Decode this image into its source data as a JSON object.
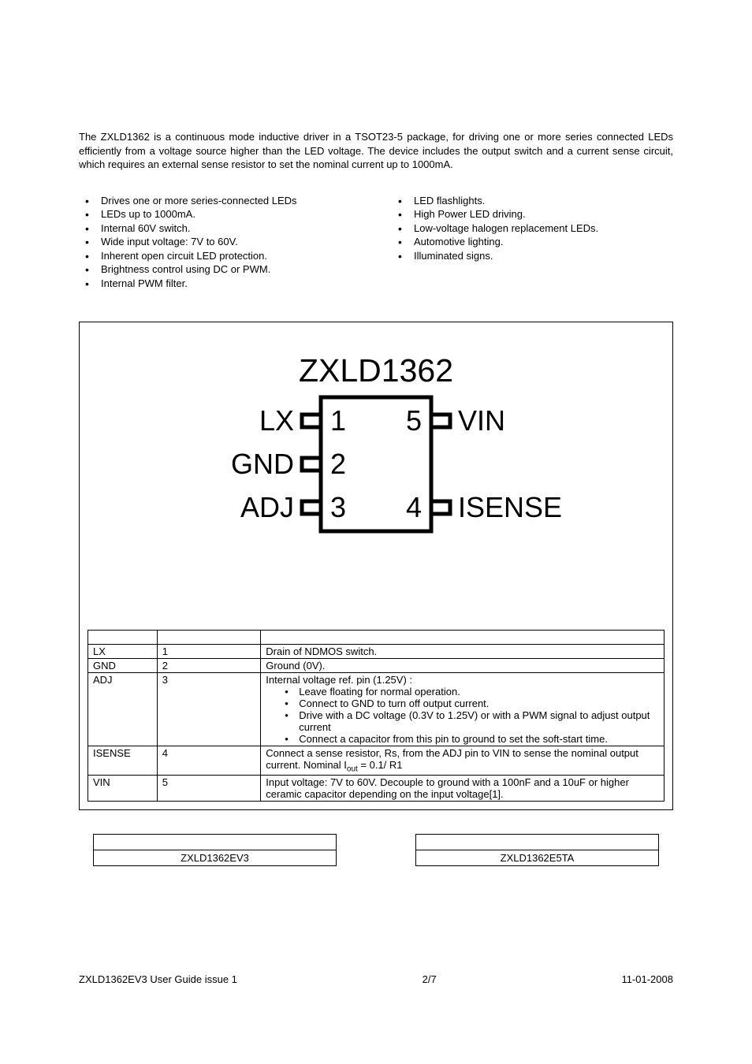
{
  "intro": "The ZXLD1362 is a continuous mode inductive driver in a TSOT23-5 package, for driving one or more series connected LEDs efficiently from a voltage source higher than the LED voltage.  The device includes the output switch and a current sense circuit, which requires an external sense resistor to set the nominal current up to 1000mA.",
  "features": [
    "Drives one or more series-connected  LEDs",
    "LEDs up to 1000mA.",
    "Internal 60V switch.",
    "Wide input voltage: 7V to 60V.",
    "Inherent open circuit LED protection.",
    "Brightness control using DC or PWM.",
    "Internal PWM filter."
  ],
  "applications": [
    "LED flashlights.",
    "High Power LED driving.",
    "Low-voltage halogen replacement LEDs.",
    "Automotive lighting.",
    "Illuminated signs."
  ],
  "diagram": {
    "title": "ZXLD1362",
    "pins_left": [
      {
        "n": "1",
        "label": "LX"
      },
      {
        "n": "2",
        "label": "GND"
      },
      {
        "n": "3",
        "label": "ADJ"
      }
    ],
    "pins_right": [
      {
        "n": "5",
        "label": "VIN"
      },
      {
        "n": "4",
        "label": "ISENSE"
      }
    ],
    "style": {
      "title_fontsize": 41,
      "label_fontsize": 36,
      "num_fontsize": 36,
      "stroke_width": 5,
      "font_family": "Arial",
      "color": "#000000",
      "pin_box_w": 24,
      "pin_box_h": 16
    }
  },
  "pin_table": {
    "columns": [
      "",
      "",
      ""
    ],
    "rows": [
      {
        "name": "LX",
        "num": "1",
        "desc_plain": "Drain of NDMOS switch."
      },
      {
        "name": "GND",
        "num": "2",
        "desc_plain": "Ground (0V)."
      },
      {
        "name": "ADJ",
        "num": "3",
        "desc_lead": "Internal voltage ref. pin (1.25V) :",
        "desc_bullets": [
          "Leave floating for normal operation.",
          "Connect to GND to turn off output current.",
          "Drive with a DC voltage (0.3V to 1.25V) or with a PWM signal to adjust output current",
          "Connect a capacitor from this pin to ground to set the soft-start time."
        ]
      },
      {
        "name": "ISENSE",
        "num": "4",
        "desc_html": "Connect a sense resistor, Rs, from the ADJ pin to VIN to sense the nominal output current. Nominal I<sub>out</sub> = 0.1/ R1"
      },
      {
        "name": "VIN",
        "num": "5",
        "desc_plain": "Input voltage: 7V to 60V. Decouple to ground with a 100nF and a  10uF or higher ceramic capacitor depending on the input voltage[1]."
      }
    ]
  },
  "ordering": {
    "left": {
      "header": "",
      "value": "ZXLD1362EV3"
    },
    "right": {
      "header": "",
      "value": "ZXLD1362E5TA"
    }
  },
  "footer": {
    "left": "ZXLD1362EV3 User Guide issue 1",
    "center": "2/7",
    "right": "11-01-2008"
  }
}
